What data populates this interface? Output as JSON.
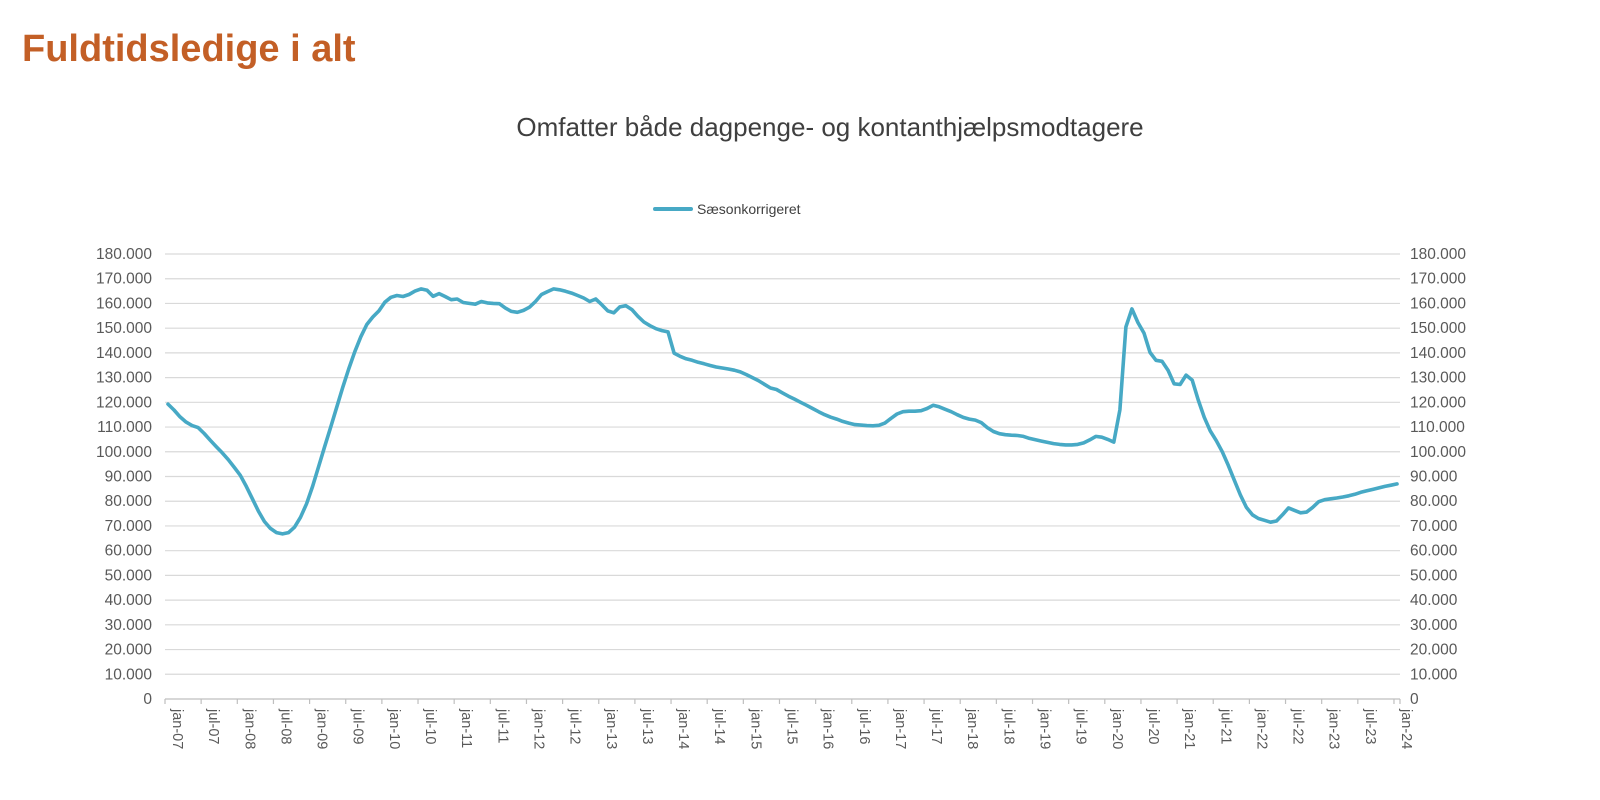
{
  "page": {
    "title": "Fuldtidsledige i alt",
    "title_color": "#c35f26",
    "background": "#ffffff"
  },
  "chart_data": {
    "type": "line",
    "title": "Omfatter både dagpenge- og kontanthjælpsmodtagere",
    "legend": {
      "position": "top-center",
      "entries": [
        {
          "label": "Sæsonkorrigeret",
          "color": "#47a9c5"
        }
      ]
    },
    "grid": "horizontal",
    "ylim": [
      0,
      180000
    ],
    "y_step": 10000,
    "y_tick_labels": [
      "0",
      "10.000",
      "20.000",
      "30.000",
      "40.000",
      "50.000",
      "60.000",
      "70.000",
      "80.000",
      "90.000",
      "100.000",
      "110.000",
      "120.000",
      "130.000",
      "140.000",
      "150.000",
      "160.000",
      "170.000",
      "180.000"
    ],
    "y_axis_sides": "both",
    "x_tick_labels": [
      "jan-07",
      "jul-07",
      "jan-08",
      "jul-08",
      "jan-09",
      "jul-09",
      "jan-10",
      "jul-10",
      "jan-11",
      "jul-11",
      "jan-12",
      "jul-12",
      "jan-13",
      "jul-13",
      "jan-14",
      "jul-14",
      "jan-15",
      "jul-15",
      "jan-16",
      "jul-16",
      "jan-17",
      "jul-17",
      "jan-18",
      "jul-18",
      "jan-19",
      "jul-19",
      "jan-20",
      "jul-20",
      "jan-21",
      "jul-21",
      "jan-22",
      "jul-22",
      "jan-23",
      "jul-23",
      "jan-24"
    ],
    "x_label_rotation_deg": 90,
    "colors": {
      "gridline": "#d9d9d9",
      "axis_line": "#bfbfbf",
      "tick_label": "#595959"
    },
    "series": [
      {
        "name": "Sæsonkorrigeret",
        "start": "2007-01",
        "frequency": "monthly",
        "color": "#47a9c5",
        "values": [
          119300,
          116900,
          114100,
          112000,
          110600,
          109800,
          107400,
          104700,
          102100,
          99600,
          96800,
          93700,
          90500,
          86000,
          81000,
          76000,
          71800,
          69000,
          67300,
          66800,
          67300,
          69500,
          73500,
          79000,
          86000,
          94000,
          102000,
          110000,
          118000,
          126000,
          133500,
          140500,
          146500,
          151500,
          154500,
          157000,
          160500,
          162500,
          163200,
          162800,
          163600,
          165000,
          165900,
          165300,
          162900,
          164000,
          162800,
          161500,
          161800,
          160400,
          160000,
          159700,
          160800,
          160200,
          160000,
          159900,
          158100,
          156800,
          156400,
          157200,
          158500,
          160800,
          163600,
          164800,
          165900,
          165500,
          164900,
          164200,
          163200,
          162200,
          160800,
          161800,
          159500,
          157000,
          156200,
          158600,
          159100,
          157500,
          154800,
          152500,
          151000,
          149800,
          149000,
          148500,
          139900,
          138600,
          137600,
          137000,
          136200,
          135600,
          134900,
          134300,
          133900,
          133500,
          133000,
          132300,
          131200,
          130000,
          128800,
          127300,
          125800,
          125200,
          123800,
          122500,
          121300,
          120000,
          118800,
          117500,
          116200,
          115000,
          114000,
          113200,
          112300,
          111600,
          111000,
          110800,
          110600,
          110500,
          110700,
          111600,
          113500,
          115300,
          116200,
          116400,
          116400,
          116600,
          117500,
          118800,
          118200,
          117200,
          116200,
          115000,
          113900,
          113200,
          112800,
          111800,
          109800,
          108200,
          107300,
          106900,
          106700,
          106600,
          106200,
          105400,
          104900,
          104300,
          103800,
          103300,
          103000,
          102800,
          102800,
          103000,
          103600,
          104800,
          106200,
          105900,
          105000,
          103900,
          117000,
          150500,
          157800,
          152300,
          148000,
          140200,
          137000,
          136600,
          132900,
          127500,
          127200,
          131000,
          129000,
          121000,
          114000,
          108500,
          104500,
          100000,
          94500,
          88500,
          82500,
          77500,
          74500,
          73000,
          72300,
          71500,
          72000,
          74500,
          77300,
          76300,
          75300,
          75600,
          77500,
          79800,
          80600,
          81000,
          81300,
          81700,
          82200,
          82800,
          83600,
          84200,
          84800,
          85400,
          86000,
          86500,
          87000
        ]
      }
    ]
  }
}
